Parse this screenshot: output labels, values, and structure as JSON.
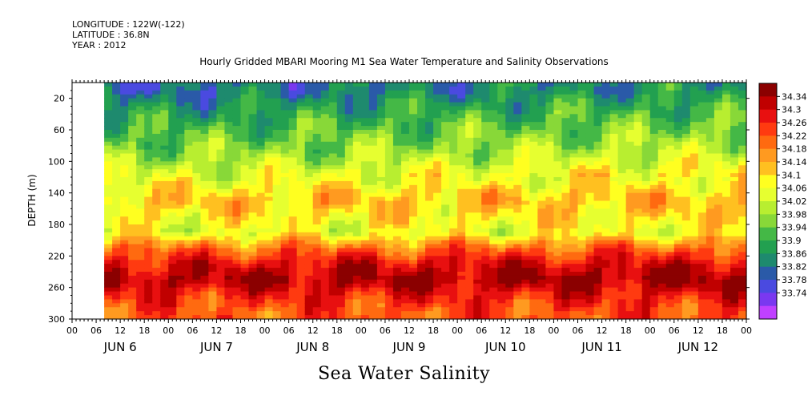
{
  "header": {
    "longitude": "LONGITUDE : 122W(-122)",
    "latitude": "LATITUDE : 36.8N",
    "year": "YEAR : 2012"
  },
  "chart_data": {
    "type": "heatmap",
    "title": "Hourly Gridded MBARI Mooring M1 Sea Water Temperature and Salinity Observations",
    "ylabel": "DEPTH (m)",
    "footer_label": "Sea Water Salinity",
    "ylim": [
      300,
      0
    ],
    "yticks": [
      20,
      60,
      100,
      140,
      180,
      220,
      260,
      300
    ],
    "x_hour_ticks": [
      "00",
      "06",
      "12",
      "18",
      "00",
      "06",
      "12",
      "18",
      "00",
      "06",
      "12",
      "18",
      "00",
      "06",
      "12",
      "18",
      "00",
      "06",
      "12",
      "18",
      "00",
      "06",
      "12",
      "18",
      "00",
      "06",
      "12",
      "18",
      "00"
    ],
    "x_day_labels": [
      "JUN  6",
      "JUN  7",
      "JUN  8",
      "JUN  9",
      "JUN 10",
      "JUN 11",
      "JUN 12"
    ],
    "data_start_hours": 8,
    "total_hours": 168,
    "colorbar": {
      "levels": [
        "34.34",
        "34.3",
        "34.26",
        "34.22",
        "34.18",
        "34.14",
        "34.1",
        "34.06",
        "34.02",
        "33.98",
        "33.94",
        "33.9",
        "33.86",
        "33.82",
        "33.78",
        "33.74"
      ],
      "colors": [
        "#8b0000",
        "#c00000",
        "#e81010",
        "#ff3a10",
        "#ff6a10",
        "#ff9a20",
        "#ffc020",
        "#ffff20",
        "#e6ff30",
        "#b8ee30",
        "#88d838",
        "#44b846",
        "#22a050",
        "#1e8a6e",
        "#2a5aa8",
        "#4a4ae0",
        "#7a38f0",
        "#c040ff"
      ],
      "range": [
        33.74,
        34.34
      ]
    },
    "salinity_profile": {
      "depths": [
        10,
        30,
        50,
        70,
        90,
        110,
        130,
        150,
        170,
        190,
        210,
        230,
        250,
        270,
        290
      ],
      "values": [
        33.86,
        33.9,
        33.93,
        33.96,
        33.99,
        34.03,
        34.08,
        34.12,
        34.09,
        34.06,
        34.18,
        34.26,
        34.3,
        34.24,
        34.2
      ]
    }
  }
}
